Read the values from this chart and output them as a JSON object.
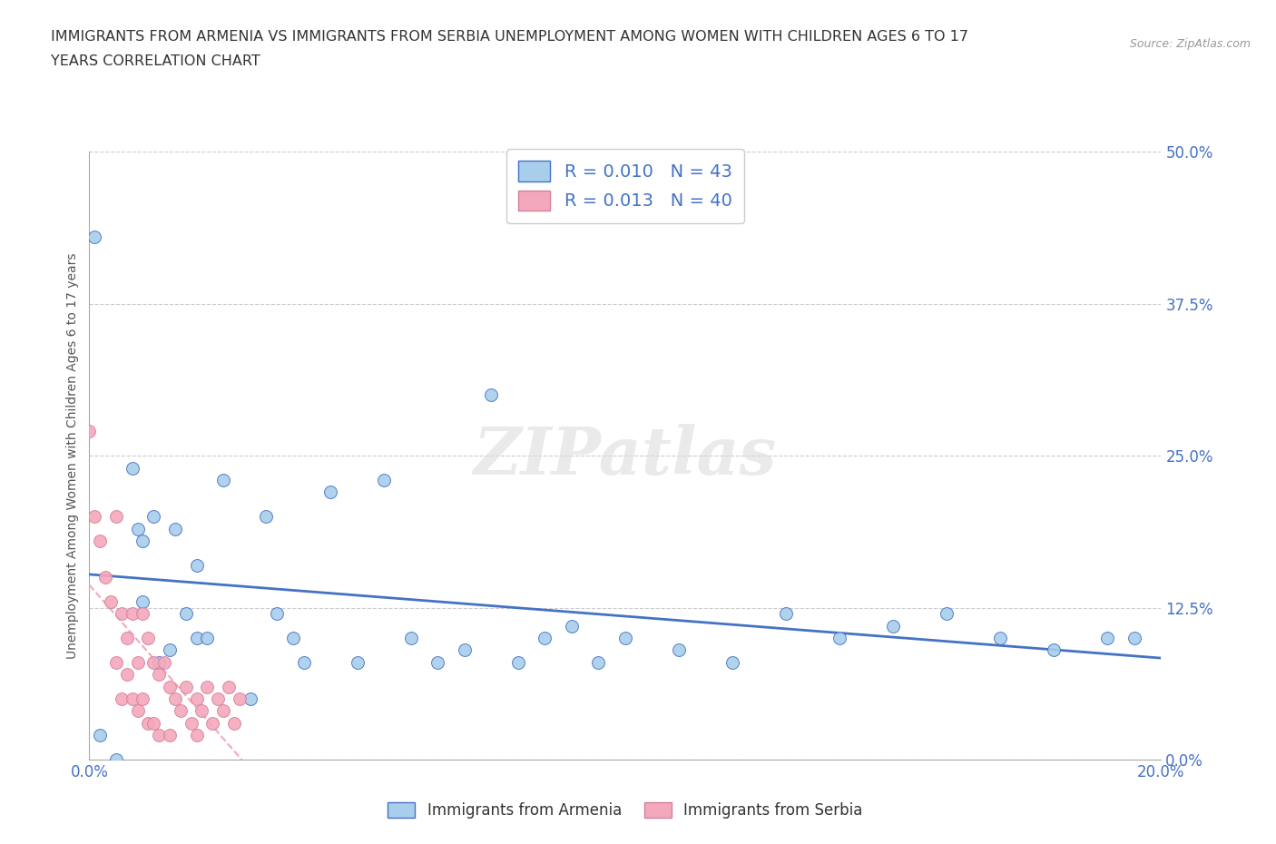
{
  "title_line1": "IMMIGRANTS FROM ARMENIA VS IMMIGRANTS FROM SERBIA UNEMPLOYMENT AMONG WOMEN WITH CHILDREN AGES 6 TO 17",
  "title_line2": "YEARS CORRELATION CHART",
  "source": "Source: ZipAtlas.com",
  "ylabel_label": "Unemployment Among Women with Children Ages 6 to 17 years",
  "ylabel_ticks": [
    "0.0%",
    "12.5%",
    "25.0%",
    "37.5%",
    "50.0%"
  ],
  "xlabel_ticks": [
    "0.0%",
    "20.0%"
  ],
  "xlim": [
    0.0,
    0.2
  ],
  "ylim": [
    0.0,
    0.5
  ],
  "ytick_vals": [
    0.0,
    0.125,
    0.25,
    0.375,
    0.5
  ],
  "xtick_vals": [
    0.0,
    0.2
  ],
  "color_armenia": "#A8CEEC",
  "color_serbia": "#F4A8BC",
  "legend_R_armenia": "R = 0.010",
  "legend_N_armenia": "N = 43",
  "legend_R_serbia": "R = 0.013",
  "legend_N_serbia": "N = 40",
  "watermark_text": "ZIPatlas",
  "grid_color": "#CCCCCC",
  "regression_color_armenia": "#4472C4",
  "regression_color_serbia": "#F4A8BC",
  "tick_color": "#4472C4",
  "armenia_x": [
    0.001,
    0.002,
    0.005,
    0.008,
    0.009,
    0.01,
    0.01,
    0.012,
    0.013,
    0.015,
    0.016,
    0.018,
    0.02,
    0.02,
    0.022,
    0.025,
    0.03,
    0.033,
    0.035,
    0.038,
    0.04,
    0.045,
    0.05,
    0.055,
    0.06,
    0.065,
    0.07,
    0.075,
    0.08,
    0.085,
    0.09,
    0.095,
    0.1,
    0.11,
    0.12,
    0.13,
    0.14,
    0.15,
    0.16,
    0.17,
    0.18,
    0.19,
    0.195
  ],
  "armenia_y": [
    0.43,
    0.02,
    0.0,
    0.24,
    0.19,
    0.18,
    0.13,
    0.2,
    0.08,
    0.09,
    0.19,
    0.12,
    0.16,
    0.1,
    0.1,
    0.23,
    0.05,
    0.2,
    0.12,
    0.1,
    0.08,
    0.22,
    0.08,
    0.23,
    0.1,
    0.08,
    0.09,
    0.3,
    0.08,
    0.1,
    0.11,
    0.08,
    0.1,
    0.09,
    0.08,
    0.12,
    0.1,
    0.11,
    0.12,
    0.1,
    0.09,
    0.1,
    0.1
  ],
  "serbia_x": [
    0.0,
    0.001,
    0.002,
    0.003,
    0.004,
    0.005,
    0.005,
    0.006,
    0.006,
    0.007,
    0.007,
    0.008,
    0.008,
    0.009,
    0.009,
    0.01,
    0.01,
    0.011,
    0.011,
    0.012,
    0.012,
    0.013,
    0.013,
    0.014,
    0.015,
    0.015,
    0.016,
    0.017,
    0.018,
    0.019,
    0.02,
    0.02,
    0.021,
    0.022,
    0.023,
    0.024,
    0.025,
    0.026,
    0.027,
    0.028
  ],
  "serbia_y": [
    0.27,
    0.2,
    0.18,
    0.15,
    0.13,
    0.2,
    0.08,
    0.12,
    0.05,
    0.1,
    0.07,
    0.12,
    0.05,
    0.08,
    0.04,
    0.12,
    0.05,
    0.1,
    0.03,
    0.08,
    0.03,
    0.07,
    0.02,
    0.08,
    0.06,
    0.02,
    0.05,
    0.04,
    0.06,
    0.03,
    0.05,
    0.02,
    0.04,
    0.06,
    0.03,
    0.05,
    0.04,
    0.06,
    0.03,
    0.05
  ]
}
